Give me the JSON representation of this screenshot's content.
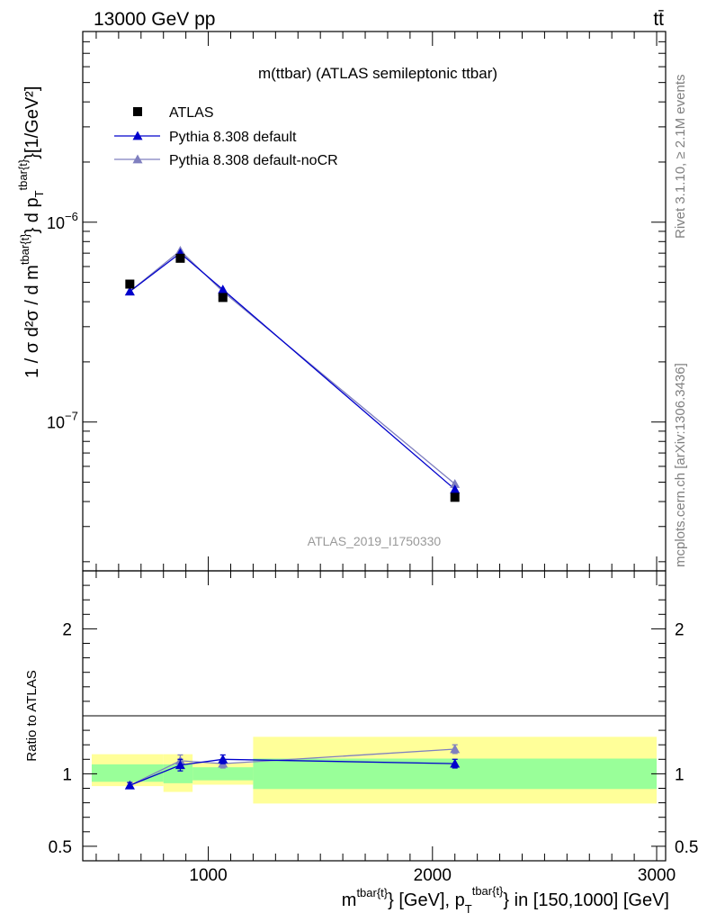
{
  "header": {
    "beam_label": "13000 GeV pp",
    "process_label": "tt̄"
  },
  "side_labels": {
    "rivet": "Rivet 3.1.10, ≥ 2.1M events",
    "mcplots": "mcplots.cern.ch [arXiv:1306.3436]"
  },
  "chart_data": [
    {
      "type": "scatter",
      "title": "m(ttbar) (ATLAS semileptonic ttbar)",
      "watermark": "ATLAS_2019_I1750330",
      "ylabel_parts": {
        "main": "1 / σ d²σ / d m",
        "sup1": "tbar{t}",
        "mid": "} d p",
        "sub": "T",
        "sup2": "tbar{t}",
        "unit": "}[1/GeV²]"
      },
      "xlim": [
        440,
        3040
      ],
      "ylim": [
        1.8e-08,
        9e-06
      ],
      "yscale": "log",
      "y_tick_labels": [
        {
          "value": 1e-06,
          "base": "10",
          "exp": "−6"
        },
        {
          "value": 1e-07,
          "base": "10",
          "exp": "−7"
        }
      ],
      "legend_position": "top-left",
      "series": [
        {
          "name": "ATLAS",
          "marker": "square",
          "color": "#000000",
          "x": [
            650,
            875,
            1065,
            2100
          ],
          "y": [
            4.9e-07,
            6.6e-07,
            4.2e-07,
            4.2e-08
          ]
        },
        {
          "name": "Pythia 8.308 default",
          "marker": "triangle",
          "color": "#0000cc",
          "x": [
            650,
            875,
            1065,
            2100
          ],
          "y": [
            4.5e-07,
            7e-07,
            4.6e-07,
            4.6e-08
          ]
        },
        {
          "name": "Pythia 8.308 default-noCR",
          "marker": "triangle",
          "color": "#7f7fbf",
          "x": [
            650,
            875,
            1065,
            2100
          ],
          "y": [
            4.5e-07,
            7.2e-07,
            4.5e-07,
            4.9e-08
          ]
        }
      ]
    },
    {
      "type": "scatter",
      "ylabel": "Ratio to ATLAS",
      "xlim": [
        440,
        3040
      ],
      "ylim": [
        0.4,
        2.4
      ],
      "y_tick_labels": [
        "0.5",
        "1",
        "2"
      ],
      "y_tick_values": [
        0.5,
        1,
        2
      ],
      "x_tick_labels": [
        "1000",
        "2000",
        "3000"
      ],
      "x_tick_values": [
        1000,
        2000,
        3000
      ],
      "xlabel_parts": {
        "a": "m",
        "a_sup": "tbar{t}",
        "b": "} [GeV], p",
        "b_sub": "T",
        "b_sup": "tbar{t}",
        "c": "} in [150,1000] [GeV]"
      },
      "bands": [
        {
          "x": [
            480,
            800
          ],
          "stat": [
            0.945,
            1.065
          ],
          "total": [
            0.915,
            1.135
          ]
        },
        {
          "x": [
            800,
            930
          ],
          "stat": [
            0.935,
            1.065
          ],
          "total": [
            0.875,
            1.135
          ]
        },
        {
          "x": [
            930,
            1200
          ],
          "stat": [
            0.955,
            1.045
          ],
          "total": [
            0.925,
            1.075
          ]
        },
        {
          "x": [
            1200,
            3000
          ],
          "stat": [
            0.895,
            1.105
          ],
          "total": [
            0.795,
            1.255
          ]
        }
      ],
      "band_colors": {
        "total": "#ffff99",
        "stat": "#99ff99"
      },
      "series": [
        {
          "name": "Pythia 8.308 default",
          "color": "#0000cc",
          "x": [
            650,
            875,
            1065,
            2100
          ],
          "y": [
            0.92,
            1.06,
            1.1,
            1.07
          ],
          "err": [
            0.02,
            0.04,
            0.03,
            0.03
          ]
        },
        {
          "name": "Pythia 8.308 default-noCR",
          "color": "#7f7fbf",
          "x": [
            650,
            875,
            1065,
            2100
          ],
          "y": [
            0.92,
            1.09,
            1.07,
            1.17
          ],
          "err": [
            0.02,
            0.04,
            0.03,
            0.03
          ]
        }
      ]
    }
  ]
}
